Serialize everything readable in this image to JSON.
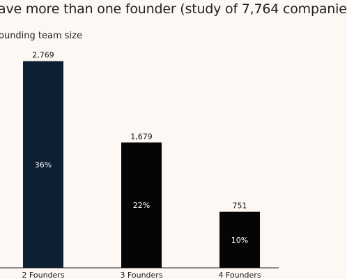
{
  "headline": "ave more than one founder (study of 7,764 companie",
  "colors": {
    "background": "#fdf8f4",
    "bar_first": "#0d1f33",
    "bar_other": "#050505",
    "axis": "#222222"
  },
  "chart_data": {
    "type": "bar",
    "title": "ounding team size",
    "categories": [
      "2 Founders",
      "3 Founders",
      "4 Founders"
    ],
    "values": [
      2769,
      1679,
      751
    ],
    "value_labels": [
      "2,769",
      "1,679",
      "751"
    ],
    "percent_labels": [
      "36%",
      "22%",
      "10%"
    ],
    "ylim": [
      0,
      3000
    ],
    "grid": false,
    "legend": "none"
  }
}
